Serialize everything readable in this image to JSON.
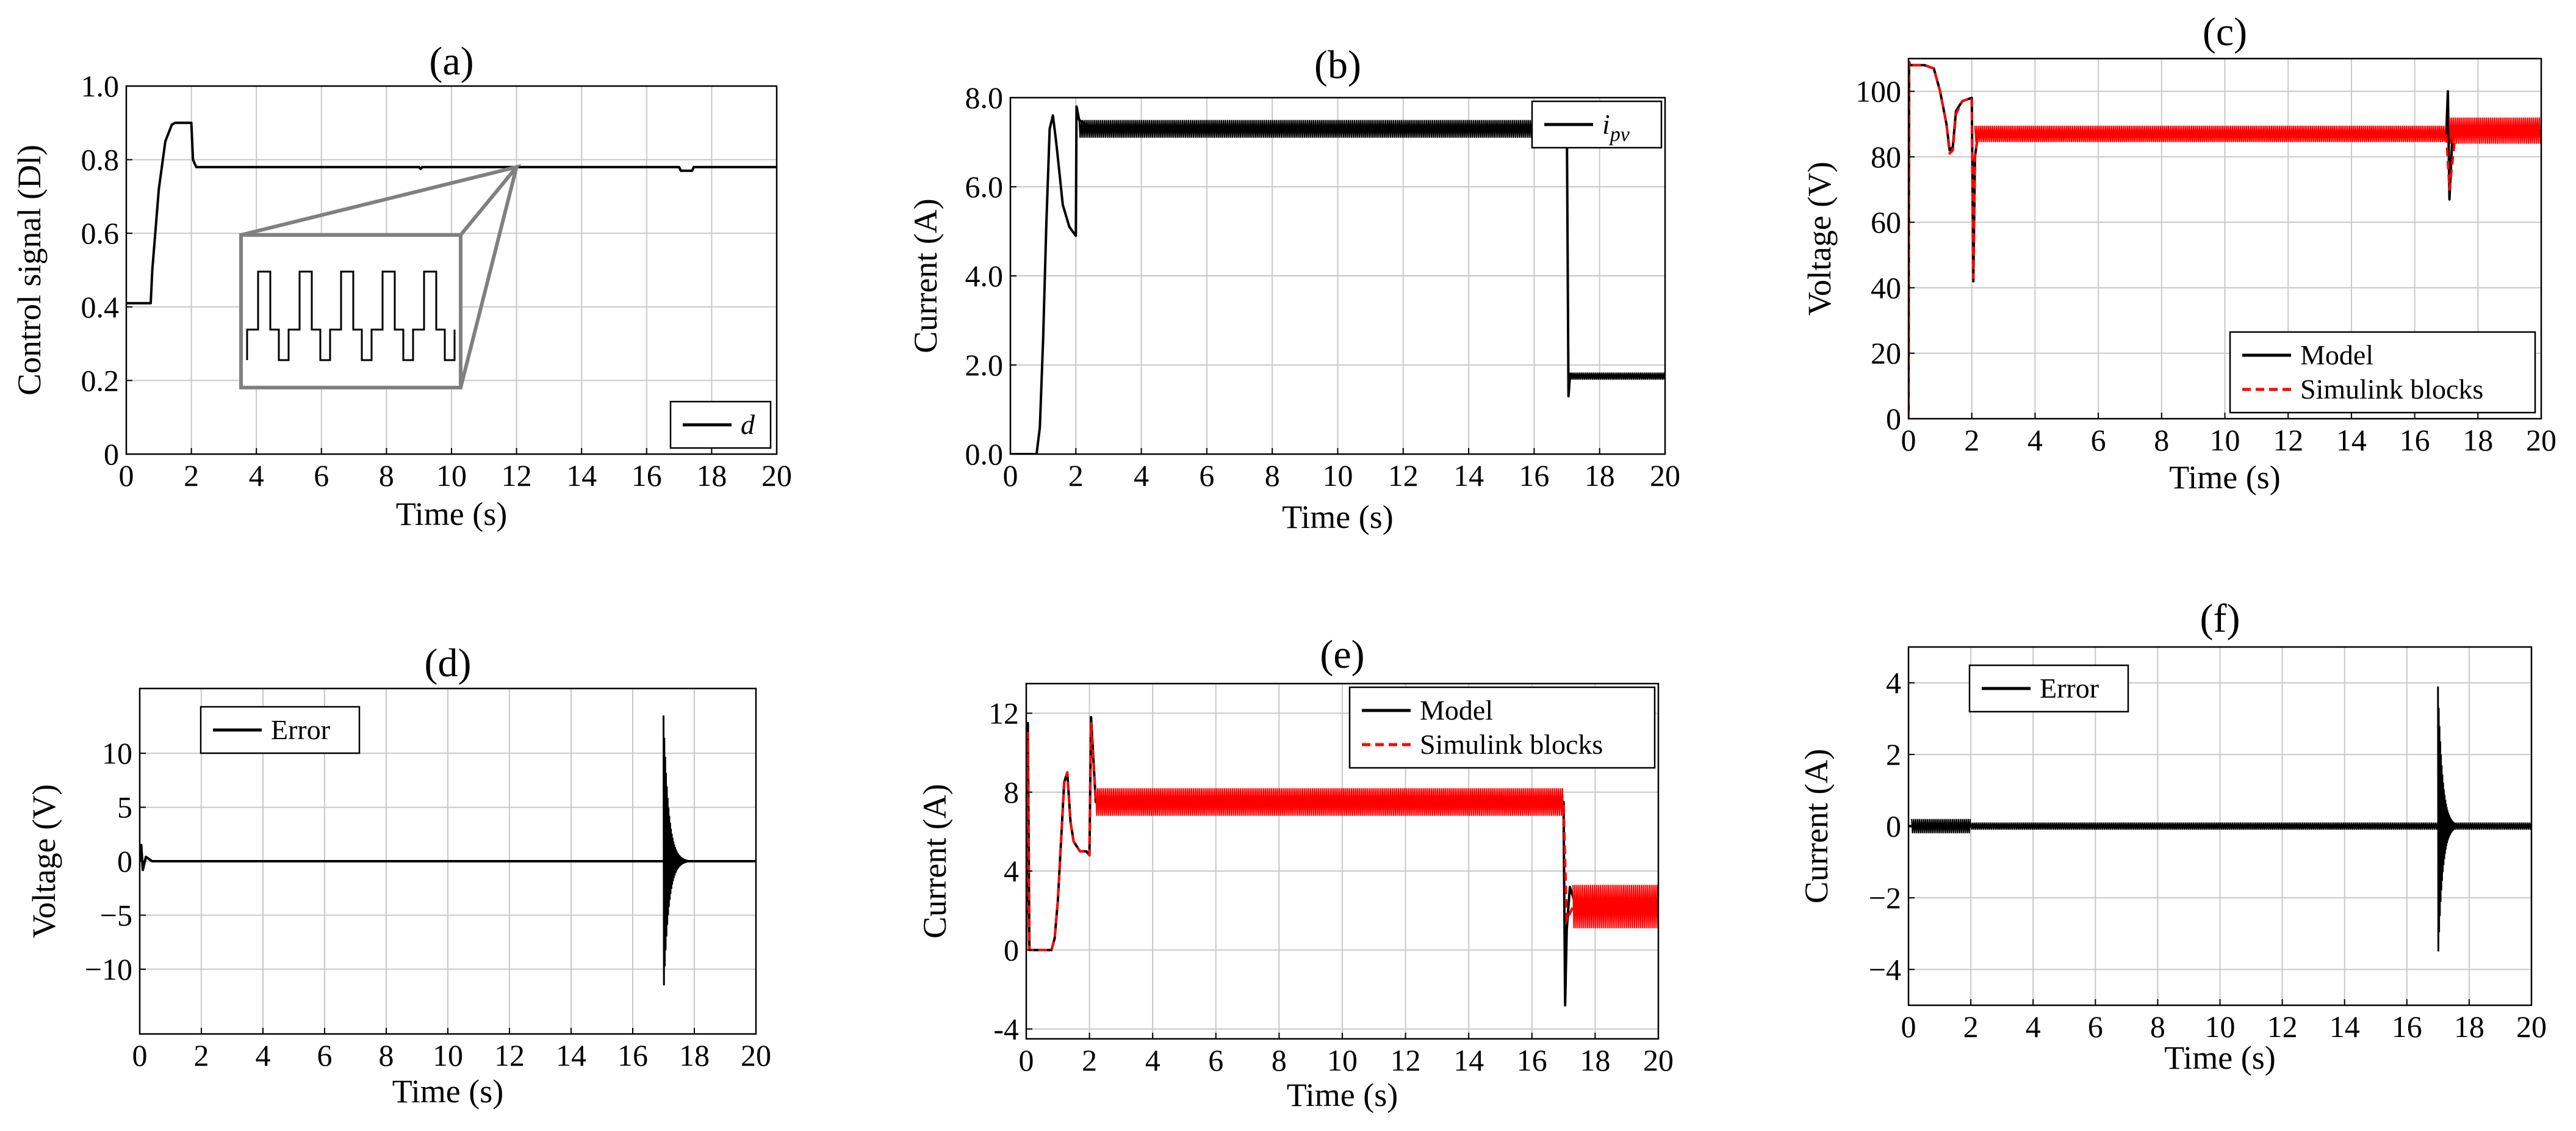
{
  "figure": {
    "panels": [
      {
        "id": "a",
        "title": "(a)"
      },
      {
        "id": "b",
        "title": "(b)"
      },
      {
        "id": "c",
        "title": "(c)"
      },
      {
        "id": "d",
        "title": "(d)"
      },
      {
        "id": "e",
        "title": "(e)"
      },
      {
        "id": "f",
        "title": "(f)"
      }
    ]
  },
  "colors": {
    "model": "#000000",
    "simulink": "#ff0000",
    "grid": "#c8c8c8",
    "inset": "#808080"
  },
  "chart_data": [
    {
      "id": "a",
      "type": "line",
      "title": "(a)",
      "xlabel": "Time (s)",
      "ylabel": "Control signal (Dl)",
      "xlim": [
        0,
        20
      ],
      "ylim": [
        0,
        1.0
      ],
      "xticks": [
        0,
        2,
        4,
        6,
        8,
        10,
        12,
        14,
        16,
        18,
        20
      ],
      "xticklabels": [
        "0",
        "2",
        "4",
        "6",
        "8",
        "10",
        "12",
        "14",
        "16",
        "18",
        "20"
      ],
      "yticks": [
        0,
        0.2,
        0.4,
        0.6,
        0.8,
        1.0
      ],
      "yticklabels": [
        "0",
        "0.2",
        "0.4",
        "0.6",
        "0.8",
        "1.0"
      ],
      "legend": {
        "position": "bottom-right",
        "entries": [
          {
            "label": "d",
            "color": "#000000",
            "style": "solid"
          }
        ]
      },
      "inset": {
        "description": "zoomed square-wave ripple of d",
        "anchor_time": 12
      },
      "series": [
        {
          "name": "d",
          "color": "#000000",
          "style": "solid",
          "x": [
            0,
            0.75,
            0.8,
            1.0,
            1.2,
            1.4,
            1.5,
            2.0,
            2.05,
            2.15,
            9.0,
            9.05,
            9.1,
            17.0,
            17.05,
            17.4,
            17.45,
            20
          ],
          "y": [
            0.41,
            0.41,
            0.5,
            0.72,
            0.85,
            0.895,
            0.9,
            0.9,
            0.8,
            0.78,
            0.78,
            0.775,
            0.78,
            0.78,
            0.77,
            0.77,
            0.78,
            0.78
          ]
        }
      ]
    },
    {
      "id": "b",
      "type": "line",
      "title": "(b)",
      "xlabel": "Time (s)",
      "ylabel": "Current (A)",
      "xlim": [
        0,
        20
      ],
      "ylim": [
        0,
        8.0
      ],
      "xticks": [
        0,
        2,
        4,
        6,
        8,
        10,
        12,
        14,
        16,
        18,
        20
      ],
      "xticklabels": [
        "0",
        "2",
        "4",
        "6",
        "8",
        "10",
        "12",
        "14",
        "16",
        "18",
        "20"
      ],
      "yticks": [
        0,
        2,
        4,
        6,
        8
      ],
      "yticklabels": [
        "0.0",
        "2.0",
        "4.0",
        "6.0",
        "8.0"
      ],
      "legend": {
        "position": "top-right",
        "entries": [
          {
            "label": "i",
            "subscript": "pv",
            "color": "#000000",
            "style": "solid"
          }
        ]
      },
      "series": [
        {
          "name": "ipv",
          "color": "#000000",
          "style": "solid",
          "x": [
            0,
            0.8,
            0.9,
            1.0,
            1.1,
            1.2,
            1.3,
            1.4,
            1.5,
            1.6,
            1.8,
            2.0,
            2.02,
            2.1,
            2.5,
            9.0,
            9.3,
            17.0,
            17.05,
            17.1,
            17.3,
            20
          ],
          "y": [
            0.0,
            0.0,
            0.6,
            2.6,
            5.2,
            7.3,
            7.6,
            7.0,
            6.3,
            5.6,
            5.1,
            4.9,
            7.8,
            7.5,
            7.3,
            7.3,
            7.3,
            7.3,
            1.3,
            1.8,
            1.75,
            1.75
          ],
          "ripple_bands": [
            {
              "x0": 2.1,
              "x1": 17.0,
              "center": 7.3,
              "amplitude": 0.2
            },
            {
              "x0": 17.1,
              "x1": 20,
              "center": 1.75,
              "amplitude": 0.08
            }
          ]
        }
      ]
    },
    {
      "id": "c",
      "type": "line",
      "title": "(c)",
      "xlabel": "Time (s)",
      "ylabel": "Voltage (V)",
      "xlim": [
        0,
        20
      ],
      "ylim": [
        0,
        110
      ],
      "xticks": [
        0,
        2,
        4,
        6,
        8,
        10,
        12,
        14,
        16,
        18,
        20
      ],
      "xticklabels": [
        "0",
        "2",
        "4",
        "6",
        "8",
        "10",
        "12",
        "14",
        "16",
        "18",
        "20"
      ],
      "yticks": [
        0,
        20,
        40,
        60,
        80,
        100
      ],
      "yticklabels": [
        "0",
        "20",
        "40",
        "60",
        "80",
        "100"
      ],
      "legend": {
        "position": "bottom-right",
        "entries": [
          {
            "label": "Model",
            "color": "#000000",
            "style": "solid"
          },
          {
            "label": "Simulink blocks",
            "color": "#ff0000",
            "style": "dashed"
          }
        ]
      },
      "series": [
        {
          "name": "Model",
          "color": "#000000",
          "style": "solid",
          "x": [
            0,
            0.02,
            0.05,
            0.5,
            0.8,
            1.0,
            1.2,
            1.3,
            1.4,
            1.5,
            1.7,
            2.0,
            2.05,
            2.1,
            2.2,
            2.5,
            17.0,
            17.05,
            17.1,
            17.2,
            20
          ],
          "y": [
            0,
            109,
            108,
            108,
            107,
            100,
            90,
            82,
            83,
            94,
            97,
            98,
            42,
            80,
            87,
            87,
            87,
            100,
            67,
            88,
            88
          ]
        },
        {
          "name": "Simulink blocks",
          "color": "#ff0000",
          "style": "dashed",
          "x": [
            0,
            0.02,
            0.05,
            0.5,
            0.8,
            1.0,
            1.2,
            1.3,
            1.4,
            1.5,
            1.7,
            2.0,
            2.05,
            2.1,
            2.2,
            2.5,
            17.0,
            17.1,
            17.3,
            20
          ],
          "y": [
            0,
            109,
            108,
            108,
            107,
            100,
            90,
            81,
            82,
            93,
            97,
            98,
            43,
            80,
            87,
            87,
            87,
            70,
            88,
            88
          ],
          "ripple_bands": [
            {
              "x0": 2.1,
              "x1": 17.0,
              "center": 87,
              "amplitude": 2.5
            },
            {
              "x0": 17.1,
              "x1": 20,
              "center": 88,
              "amplitude": 4
            }
          ]
        }
      ]
    },
    {
      "id": "d",
      "type": "line",
      "title": "(d)",
      "xlabel": "Time (s)",
      "ylabel": "Voltage (V)",
      "xlim": [
        0,
        20
      ],
      "ylim": [
        -16,
        16
      ],
      "xticks": [
        0,
        2,
        4,
        6,
        8,
        10,
        12,
        14,
        16,
        18,
        20
      ],
      "xticklabels": [
        "0",
        "2",
        "4",
        "6",
        "8",
        "10",
        "12",
        "14",
        "16",
        "18",
        "20"
      ],
      "yticks": [
        -10,
        -5,
        0,
        5,
        10
      ],
      "yticklabels": [
        "−10",
        "−5",
        "0",
        "5",
        "10"
      ],
      "legend": {
        "position": "top-left",
        "entries": [
          {
            "label": "Error",
            "color": "#000000",
            "style": "solid"
          }
        ]
      },
      "series": [
        {
          "name": "Error",
          "color": "#000000",
          "style": "solid",
          "x": [
            0,
            0.05,
            0.1,
            0.2,
            0.4,
            20
          ],
          "y": [
            0,
            1.5,
            -0.8,
            0.4,
            0,
            0
          ],
          "decaying_oscillation": {
            "t0": 17.0,
            "peak_pos": 13.5,
            "peak_neg": -12.5,
            "duration": 0.8
          }
        }
      ]
    },
    {
      "id": "e",
      "type": "line",
      "title": "(e)",
      "xlabel": "Time (s)",
      "ylabel": "Current (A)",
      "xlim": [
        0,
        20
      ],
      "ylim": [
        -4.5,
        13.5
      ],
      "xticks": [
        0,
        2,
        4,
        6,
        8,
        10,
        12,
        14,
        16,
        18,
        20
      ],
      "xticklabels": [
        "0",
        "2",
        "4",
        "6",
        "8",
        "10",
        "12",
        "14",
        "16",
        "18",
        "20"
      ],
      "yticks": [
        -4,
        0,
        4,
        8,
        12
      ],
      "yticklabels": [
        "-4",
        "0",
        "4",
        "8",
        "12"
      ],
      "legend": {
        "position": "top-right",
        "entries": [
          {
            "label": "Model",
            "color": "#000000",
            "style": "solid"
          },
          {
            "label": "Simulink blocks",
            "color": "#ff0000",
            "style": "dashed"
          }
        ]
      },
      "series": [
        {
          "name": "Model",
          "color": "#000000",
          "style": "solid",
          "x": [
            0,
            0.05,
            0.1,
            0.8,
            0.9,
            1.0,
            1.1,
            1.2,
            1.3,
            1.4,
            1.5,
            1.7,
            1.9,
            2.0,
            2.05,
            2.2,
            17.0,
            17.05,
            17.1,
            17.2,
            17.4,
            20
          ],
          "y": [
            0,
            11.5,
            0,
            0,
            0.6,
            2.5,
            5.5,
            8.5,
            9.0,
            6.5,
            5.5,
            5.0,
            5.0,
            4.8,
            11.8,
            7.5,
            7.5,
            -2.8,
            1.0,
            3.2,
            2.2,
            2.2
          ]
        },
        {
          "name": "Simulink blocks",
          "color": "#ff0000",
          "style": "dashed",
          "x": [
            0,
            0.05,
            0.1,
            0.8,
            0.9,
            1.0,
            1.1,
            1.2,
            1.3,
            1.4,
            1.5,
            1.7,
            1.9,
            2.0,
            2.05,
            2.2,
            17.0,
            17.1,
            17.3,
            20
          ],
          "y": [
            0,
            11.0,
            0,
            0,
            0.6,
            2.5,
            5.5,
            8.5,
            9.0,
            6.5,
            5.5,
            5.0,
            5.0,
            4.8,
            11.5,
            7.5,
            7.5,
            1.5,
            2.2,
            2.2
          ],
          "ripple_bands": [
            {
              "x0": 2.2,
              "x1": 17.0,
              "center": 7.5,
              "amplitude": 0.7
            },
            {
              "x0": 17.3,
              "x1": 20,
              "center": 2.2,
              "amplitude": 1.1
            }
          ]
        }
      ]
    },
    {
      "id": "f",
      "type": "line",
      "title": "(f)",
      "xlabel": "Time (s)",
      "ylabel": "Current (A)",
      "xlim": [
        0,
        20
      ],
      "ylim": [
        -5,
        5
      ],
      "xticks": [
        0,
        2,
        4,
        6,
        8,
        10,
        12,
        14,
        16,
        18,
        20
      ],
      "xticklabels": [
        "0",
        "2",
        "4",
        "6",
        "8",
        "10",
        "12",
        "14",
        "16",
        "18",
        "20"
      ],
      "yticks": [
        -4,
        -2,
        0,
        2,
        4
      ],
      "yticklabels": [
        "−4",
        "−2",
        "0",
        "2",
        "4"
      ],
      "legend": {
        "position": "top-left",
        "entries": [
          {
            "label": "Error",
            "color": "#000000",
            "style": "solid"
          }
        ]
      },
      "series": [
        {
          "name": "Error",
          "color": "#000000",
          "style": "solid",
          "x": [
            0,
            20
          ],
          "y": [
            0,
            0
          ],
          "ripple_bands": [
            {
              "x0": 0.1,
              "x1": 2.0,
              "center": 0,
              "amplitude": 0.2
            },
            {
              "x0": 2.0,
              "x1": 20,
              "center": 0,
              "amplitude": 0.1
            }
          ],
          "decaying_oscillation": {
            "t0": 17.0,
            "peak_pos": 3.9,
            "peak_neg": -3.8,
            "duration": 0.7
          }
        }
      ]
    }
  ]
}
